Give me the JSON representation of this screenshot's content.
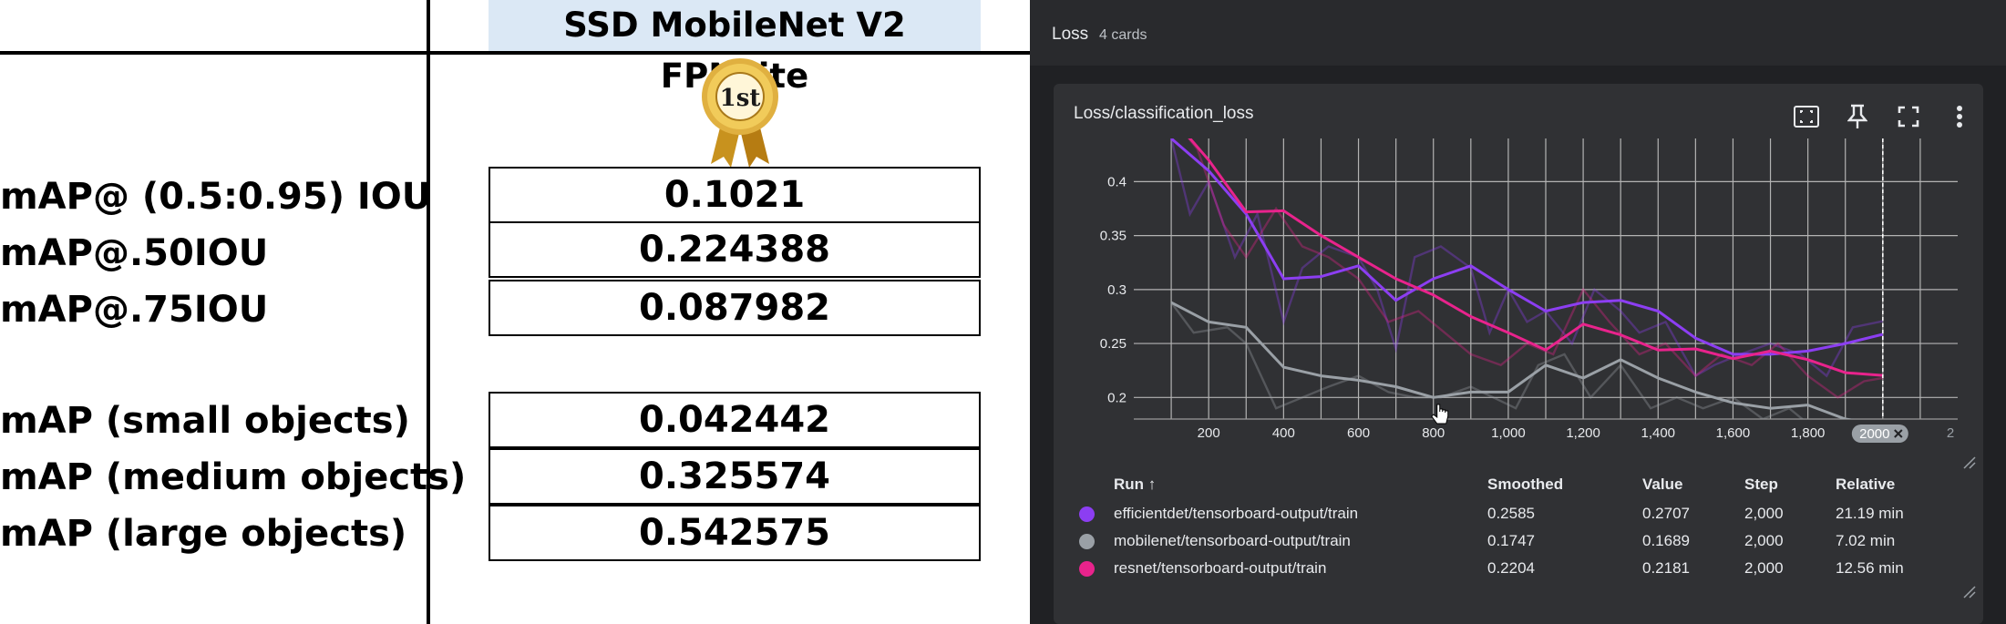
{
  "left_table": {
    "model_title": "SSD MobileNet V2 FPNLite",
    "medal_text": "1st",
    "group1": [
      {
        "label": "mAP@ (0.5:0.95) IOU",
        "value": "0.1021"
      },
      {
        "label": "mAP@.50IOU",
        "value": "0.224388"
      },
      {
        "label": "mAP@.75IOU",
        "value": "0.087982"
      }
    ],
    "group2": [
      {
        "label": "mAP (small objects)",
        "value": "0.042442"
      },
      {
        "label": "mAP (medium objects)",
        "value": "0.325574"
      },
      {
        "label": "mAP (large objects)",
        "value": "0.542575"
      }
    ]
  },
  "tensorboard": {
    "group_title": "Loss",
    "group_count": "4 cards",
    "card": {
      "title": "Loss/classification_loss",
      "icons": [
        "fit-domain-icon",
        "pin-icon",
        "fullscreen-icon",
        "more-vert-icon"
      ],
      "x_tick_labels": [
        "200",
        "400",
        "600",
        "800",
        "1,000",
        "1,200",
        "1,400",
        "1,600",
        "1,800"
      ],
      "y_tick_labels": [
        "0.2",
        "0.25",
        "0.3",
        "0.35",
        "0.4"
      ],
      "hover_step_chip": "2000",
      "clipped_tick": "2"
    },
    "table": {
      "headers": {
        "run": "Run ↑",
        "smoothed": "Smoothed",
        "value": "Value",
        "step": "Step",
        "relative": "Relative"
      },
      "rows": [
        {
          "run": "efficientdet/tensorboard-output/train",
          "smoothed": "0.2585",
          "value": "0.2707",
          "step": "2,000",
          "relative": "21.19 min",
          "color": "#8c3ef2"
        },
        {
          "run": "mobilenet/tensorboard-output/train",
          "smoothed": "0.1747",
          "value": "0.1689",
          "step": "2,000",
          "relative": "7.02 min",
          "color": "#9aa0a6"
        },
        {
          "run": "resnet/tensorboard-output/train",
          "smoothed": "0.2204",
          "value": "0.2181",
          "step": "2,000",
          "relative": "12.56 min",
          "color": "#e8238c"
        }
      ]
    }
  },
  "chart_data": {
    "type": "line",
    "title": "Loss/classification_loss",
    "xlabel": "",
    "ylabel": "",
    "xlim": [
      0,
      2200
    ],
    "ylim": [
      0.18,
      0.44
    ],
    "x_ticks": [
      200,
      400,
      600,
      800,
      1000,
      1200,
      1400,
      1600,
      1800
    ],
    "y_ticks": [
      0.2,
      0.25,
      0.3,
      0.35,
      0.4
    ],
    "grid": true,
    "hover_step": 2000,
    "series": [
      {
        "name": "efficientdet/tensorboard-output/train",
        "color": "#8c3ef2",
        "smoothed": [
          [
            100,
            0.44
          ],
          [
            200,
            0.41
          ],
          [
            300,
            0.37
          ],
          [
            400,
            0.31
          ],
          [
            500,
            0.312
          ],
          [
            600,
            0.322
          ],
          [
            700,
            0.29
          ],
          [
            800,
            0.31
          ],
          [
            900,
            0.322
          ],
          [
            1000,
            0.3
          ],
          [
            1100,
            0.28
          ],
          [
            1200,
            0.288
          ],
          [
            1300,
            0.29
          ],
          [
            1400,
            0.28
          ],
          [
            1500,
            0.255
          ],
          [
            1600,
            0.24
          ],
          [
            1700,
            0.24
          ],
          [
            1800,
            0.243
          ],
          [
            1900,
            0.25
          ],
          [
            2000,
            0.2585
          ]
        ],
        "raw": [
          [
            100,
            0.44
          ],
          [
            150,
            0.37
          ],
          [
            200,
            0.4
          ],
          [
            270,
            0.33
          ],
          [
            330,
            0.37
          ],
          [
            400,
            0.27
          ],
          [
            450,
            0.32
          ],
          [
            520,
            0.34
          ],
          [
            600,
            0.33
          ],
          [
            650,
            0.3
          ],
          [
            700,
            0.245
          ],
          [
            750,
            0.33
          ],
          [
            820,
            0.34
          ],
          [
            900,
            0.32
          ],
          [
            950,
            0.26
          ],
          [
            1000,
            0.3
          ],
          [
            1050,
            0.27
          ],
          [
            1100,
            0.28
          ],
          [
            1170,
            0.25
          ],
          [
            1230,
            0.3
          ],
          [
            1300,
            0.28
          ],
          [
            1350,
            0.26
          ],
          [
            1420,
            0.27
          ],
          [
            1500,
            0.22
          ],
          [
            1550,
            0.23
          ],
          [
            1620,
            0.24
          ],
          [
            1700,
            0.25
          ],
          [
            1780,
            0.24
          ],
          [
            1850,
            0.22
          ],
          [
            1920,
            0.265
          ],
          [
            2000,
            0.2707
          ]
        ]
      },
      {
        "name": "mobilenet/tensorboard-output/train",
        "color": "#9aa0a6",
        "smoothed": [
          [
            100,
            0.288
          ],
          [
            200,
            0.27
          ],
          [
            300,
            0.265
          ],
          [
            400,
            0.228
          ],
          [
            500,
            0.22
          ],
          [
            600,
            0.216
          ],
          [
            700,
            0.21
          ],
          [
            800,
            0.2
          ],
          [
            900,
            0.205
          ],
          [
            1000,
            0.205
          ],
          [
            1100,
            0.23
          ],
          [
            1200,
            0.218
          ],
          [
            1300,
            0.235
          ],
          [
            1400,
            0.218
          ],
          [
            1500,
            0.205
          ],
          [
            1600,
            0.195
          ],
          [
            1700,
            0.19
          ],
          [
            1800,
            0.193
          ],
          [
            1900,
            0.18
          ],
          [
            2000,
            0.1747
          ]
        ],
        "raw": [
          [
            100,
            0.288
          ],
          [
            160,
            0.26
          ],
          [
            250,
            0.265
          ],
          [
            300,
            0.25
          ],
          [
            380,
            0.19
          ],
          [
            450,
            0.2
          ],
          [
            520,
            0.21
          ],
          [
            600,
            0.22
          ],
          [
            680,
            0.205
          ],
          [
            750,
            0.2
          ],
          [
            820,
            0.2
          ],
          [
            900,
            0.21
          ],
          [
            960,
            0.2
          ],
          [
            1020,
            0.19
          ],
          [
            1080,
            0.23
          ],
          [
            1150,
            0.24
          ],
          [
            1220,
            0.2
          ],
          [
            1300,
            0.23
          ],
          [
            1380,
            0.19
          ],
          [
            1450,
            0.2
          ],
          [
            1520,
            0.19
          ],
          [
            1600,
            0.2
          ],
          [
            1680,
            0.18
          ],
          [
            1750,
            0.19
          ],
          [
            1820,
            0.17
          ],
          [
            1900,
            0.18
          ],
          [
            2000,
            0.1689
          ]
        ]
      },
      {
        "name": "resnet/tensorboard-output/train",
        "color": "#e8238c",
        "smoothed": [
          [
            100,
            0.46
          ],
          [
            200,
            0.42
          ],
          [
            300,
            0.372
          ],
          [
            400,
            0.373
          ],
          [
            500,
            0.35
          ],
          [
            600,
            0.33
          ],
          [
            700,
            0.31
          ],
          [
            800,
            0.295
          ],
          [
            900,
            0.275
          ],
          [
            1000,
            0.26
          ],
          [
            1100,
            0.244
          ],
          [
            1200,
            0.268
          ],
          [
            1300,
            0.258
          ],
          [
            1400,
            0.244
          ],
          [
            1500,
            0.245
          ],
          [
            1600,
            0.236
          ],
          [
            1700,
            0.243
          ],
          [
            1800,
            0.235
          ],
          [
            1900,
            0.223
          ],
          [
            2000,
            0.2204
          ]
        ],
        "raw": [
          [
            100,
            0.46
          ],
          [
            170,
            0.43
          ],
          [
            240,
            0.36
          ],
          [
            300,
            0.33
          ],
          [
            380,
            0.375
          ],
          [
            450,
            0.34
          ],
          [
            520,
            0.33
          ],
          [
            600,
            0.31
          ],
          [
            680,
            0.27
          ],
          [
            760,
            0.28
          ],
          [
            830,
            0.26
          ],
          [
            900,
            0.24
          ],
          [
            980,
            0.23
          ],
          [
            1050,
            0.25
          ],
          [
            1120,
            0.24
          ],
          [
            1200,
            0.3
          ],
          [
            1270,
            0.27
          ],
          [
            1350,
            0.24
          ],
          [
            1420,
            0.25
          ],
          [
            1500,
            0.22
          ],
          [
            1570,
            0.24
          ],
          [
            1650,
            0.23
          ],
          [
            1720,
            0.25
          ],
          [
            1800,
            0.22
          ],
          [
            1880,
            0.2
          ],
          [
            1950,
            0.215
          ],
          [
            2000,
            0.2181
          ]
        ]
      }
    ]
  }
}
